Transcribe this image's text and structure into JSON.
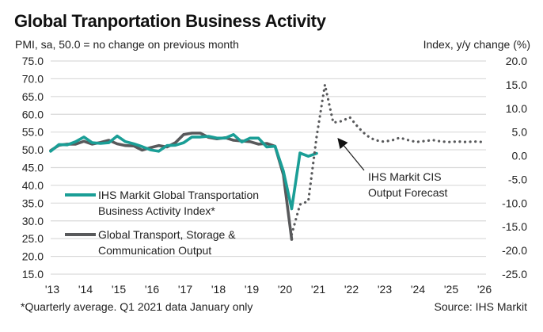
{
  "header": {
    "title": "Global Tranportation Business Activity",
    "left_axis_caption": "PMI, sa, 50.0 = no change on previous month",
    "right_axis_caption": "Index, y/y change (%)"
  },
  "footer": {
    "footnote": "*Quarterly average. Q1 2021 data January only",
    "source": "Source: IHS Markit"
  },
  "chart_data": {
    "type": "line",
    "title": "Global Tranportation Business Activity",
    "ylabel": "PMI, sa, 50.0 = no change on previous month",
    "y2label": "Index, y/y change (%)",
    "xlabel": "",
    "x_ticks": [
      "'13",
      "'14",
      "'15",
      "'16",
      "'17",
      "'18",
      "'19",
      "'20",
      "'21",
      "'22",
      "'23",
      "'24",
      "'25",
      "'26"
    ],
    "x_range": [
      2013,
      2026
    ],
    "ylim": [
      15,
      75
    ],
    "y_ticks": [
      "15.0",
      "20.0",
      "25.0",
      "30.0",
      "35.0",
      "40.0",
      "45.0",
      "50.0",
      "55.0",
      "60.0",
      "65.0",
      "70.0",
      "75.0"
    ],
    "y2lim": [
      -25,
      20
    ],
    "y2_ticks": [
      "-25.0",
      "-20.0",
      "-15.0",
      "-10.0",
      "-5.0",
      "0.0",
      "5.0",
      "10.0",
      "15.0",
      "20.0"
    ],
    "grid": "horizontal",
    "legend_position": "bottom-left",
    "series": [
      {
        "name": "IHS Markit Global Transportation Business Activity Index*",
        "legend_lines": [
          "IHS Markit Global Transportation",
          "Business Activity Index*"
        ],
        "axis": "left",
        "color": "#1a9e96",
        "style": "solid",
        "x": [
          2013.0,
          2013.25,
          2013.5,
          2013.75,
          2014.0,
          2014.25,
          2014.5,
          2014.75,
          2015.0,
          2015.25,
          2015.5,
          2015.75,
          2016.0,
          2016.25,
          2016.5,
          2016.75,
          2017.0,
          2017.25,
          2017.5,
          2017.75,
          2018.0,
          2018.25,
          2018.5,
          2018.75,
          2019.0,
          2019.25,
          2019.5,
          2019.75,
          2020.0,
          2020.25,
          2020.5,
          2020.75,
          2021.0
        ],
        "values": [
          49.6,
          51.5,
          51.4,
          52.3,
          53.6,
          52.0,
          51.8,
          52.0,
          53.9,
          52.3,
          51.7,
          50.9,
          50.0,
          49.6,
          51.2,
          51.3,
          52.0,
          53.6,
          53.6,
          53.8,
          53.3,
          53.3,
          54.3,
          52.2,
          53.3,
          53.3,
          50.8,
          51.0,
          44.0,
          33.4,
          49.1,
          48.2,
          49.0
        ]
      },
      {
        "name": "Global Transport, Storage & Communication Output",
        "legend_lines": [
          "Global Transport, Storage &",
          "Communication Output"
        ],
        "axis": "left",
        "color": "#58595b",
        "style": "solid",
        "x": [
          2013.0,
          2013.25,
          2013.5,
          2013.75,
          2014.0,
          2014.25,
          2014.5,
          2014.75,
          2015.0,
          2015.25,
          2015.5,
          2015.75,
          2016.0,
          2016.25,
          2016.5,
          2016.75,
          2017.0,
          2017.25,
          2017.5,
          2017.75,
          2018.0,
          2018.25,
          2018.5,
          2018.75,
          2019.0,
          2019.25,
          2019.5,
          2019.75,
          2020.0,
          2020.25
        ],
        "values": [
          49.8,
          51.3,
          51.6,
          51.6,
          52.4,
          51.6,
          52.1,
          52.7,
          51.7,
          51.2,
          51.1,
          49.9,
          50.6,
          51.2,
          50.8,
          52.0,
          54.3,
          54.7,
          54.7,
          53.5,
          53.1,
          53.4,
          52.7,
          52.5,
          52.3,
          51.6,
          51.8,
          51.0,
          43.0,
          24.8
        ]
      },
      {
        "name": "IHS Markit CIS Output Forecast",
        "axis": "right",
        "color": "#58595b",
        "style": "dotted",
        "x": [
          2020.25,
          2020.5,
          2020.75,
          2021.0,
          2021.25,
          2021.5,
          2021.75,
          2022.0,
          2022.25,
          2022.5,
          2022.75,
          2023.0,
          2023.25,
          2023.5,
          2023.75,
          2024.0,
          2024.25,
          2024.5,
          2024.75,
          2025.0,
          2025.25,
          2025.5,
          2025.75,
          2026.0
        ],
        "values": [
          -16.6,
          -10.3,
          -9.6,
          4.0,
          15.0,
          7.0,
          7.3,
          8.1,
          6.0,
          4.3,
          3.3,
          3.0,
          3.2,
          3.8,
          3.3,
          2.9,
          3.1,
          3.3,
          3.0,
          2.9,
          3.0,
          2.9,
          3.0,
          2.9
        ]
      }
    ],
    "annotations": [
      {
        "text_lines": [
          "IHS Markit CIS",
          "Output Forecast"
        ],
        "arrow_to_series": "IHS Markit CIS Output Forecast"
      }
    ]
  }
}
